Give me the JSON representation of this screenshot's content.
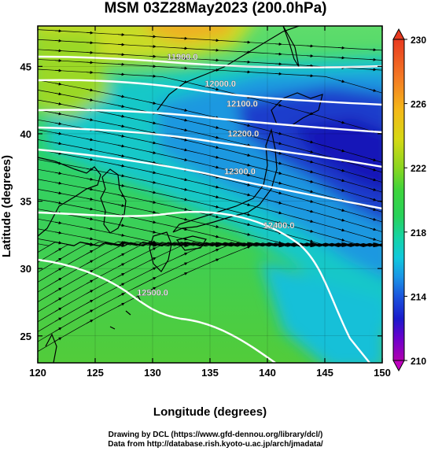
{
  "figure": {
    "title": "MSM 03Z28May2023 (200.0hPa)",
    "xlabel": "Longitude (degrees)",
    "ylabel": "Latitude  (degrees)",
    "credit_line1": "Drawing by DCL (https://www.gfd-dennou.org/library/dcl/)",
    "credit_line2": "Data from http://database.rish.kyoto-u.ac.jp/arch/jmadata/"
  },
  "map": {
    "lon_range": [
      120,
      150
    ],
    "lat_range": [
      23,
      48
    ],
    "x_ticks": [
      "120",
      "125",
      "130",
      "135",
      "140",
      "145",
      "150"
    ],
    "y_ticks": [
      "25",
      "30",
      "35",
      "40",
      "45"
    ],
    "shaded_field": "temperature-like scalar (K)",
    "streamlines": "wind streamlines with arrowheads, flow generally west to east",
    "contour_labels": [
      {
        "text": "11900.0",
        "lon": 132.6,
        "lat": 45.5
      },
      {
        "text": "12000.0",
        "lon": 135.9,
        "lat": 43.5
      },
      {
        "text": "12100.0",
        "lon": 137.8,
        "lat": 42.0
      },
      {
        "text": "12200.0",
        "lon": 137.9,
        "lat": 39.8
      },
      {
        "text": "12300.0",
        "lon": 137.6,
        "lat": 37.0
      },
      {
        "text": "12400.0",
        "lon": 141.0,
        "lat": 33.0
      },
      {
        "text": "12500.0",
        "lon": 130.0,
        "lat": 28.0
      }
    ],
    "colors": {
      "frame": "#000000",
      "contour": "#ffffff",
      "coast": "#000000"
    }
  },
  "colorbar": {
    "tick_labels": [
      "230",
      "226",
      "222",
      "218",
      "214",
      "210"
    ],
    "range": [
      210,
      230
    ],
    "colors": [
      "#b000b0",
      "#6a00cc",
      "#1a1acc",
      "#1a55dd",
      "#1a95e6",
      "#10c8dc",
      "#14d3a8",
      "#28d25a",
      "#3ed43c",
      "#8ad620",
      "#d6d814",
      "#f4b818",
      "#f47a24",
      "#e83a20"
    ]
  }
}
